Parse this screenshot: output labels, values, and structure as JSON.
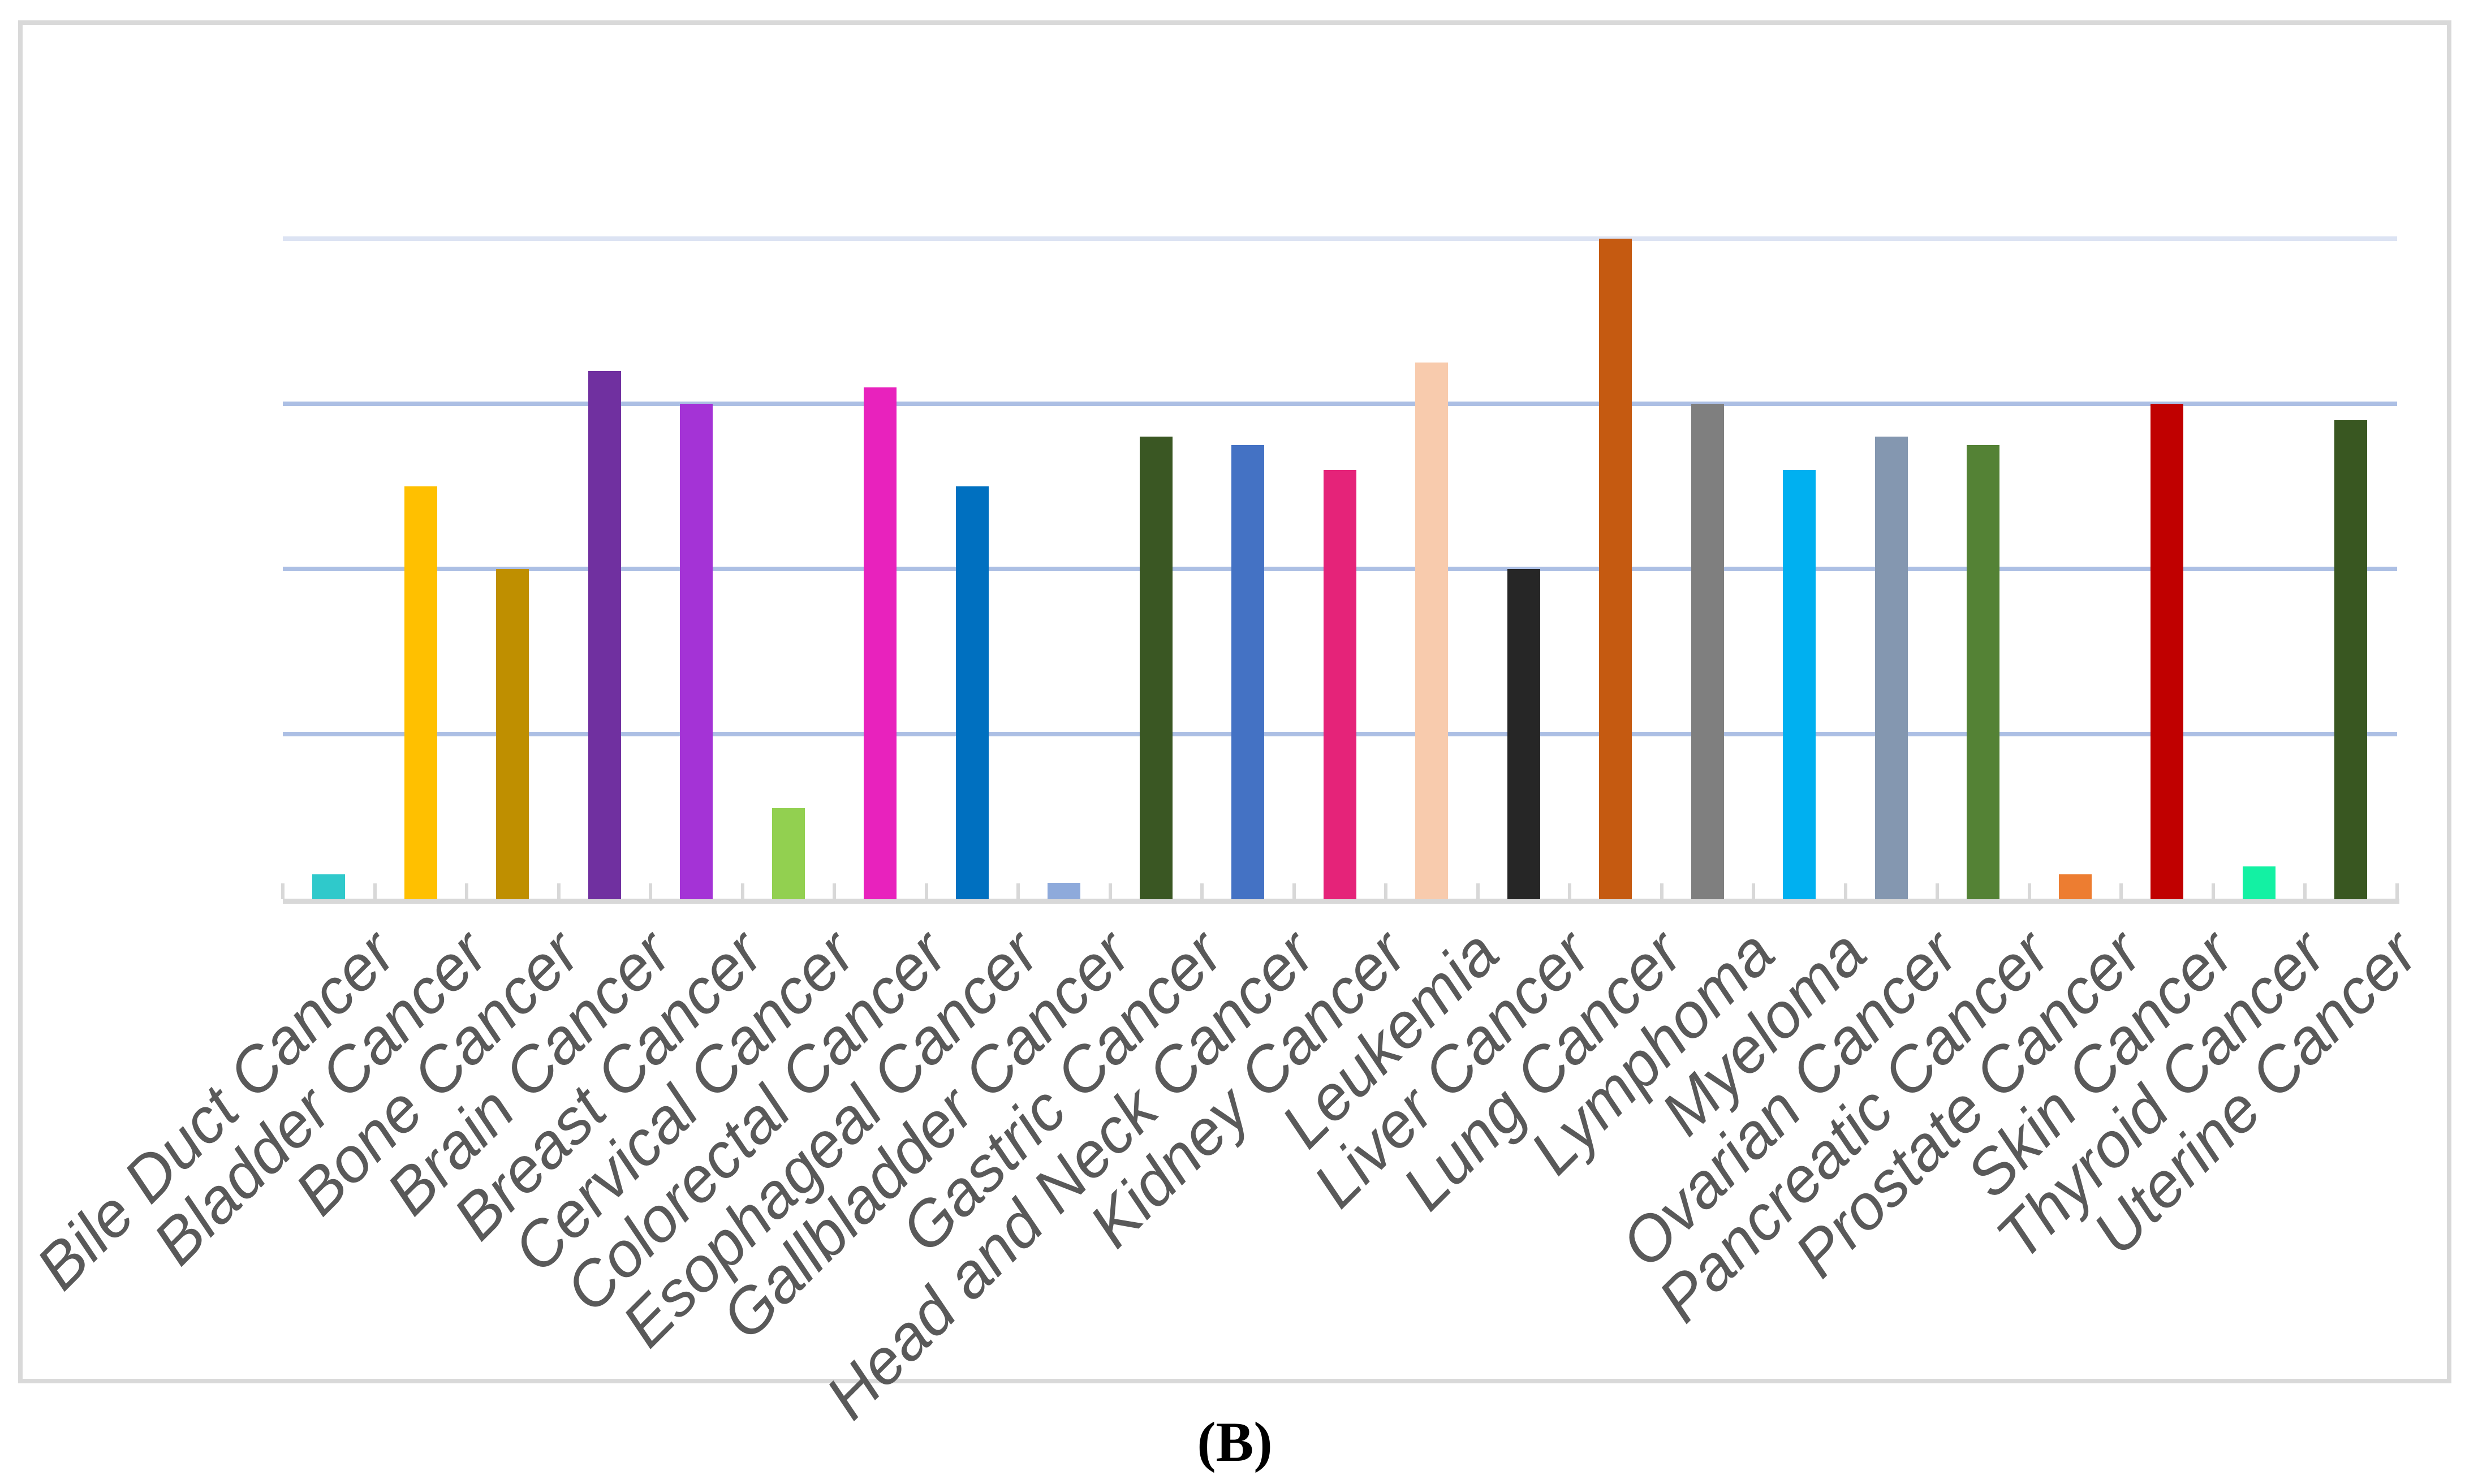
{
  "figure": {
    "caption": "(B)"
  },
  "chart_data": {
    "type": "bar",
    "title": "",
    "xlabel": "",
    "ylabel": "",
    "ylim": [
      0,
      4
    ],
    "gridline_values": [
      1,
      2,
      3,
      4
    ],
    "grid": true,
    "legend": false,
    "y_axis_labels_visible": false,
    "categories": [
      "Bile Duct Cancer",
      "Bladder Cancer",
      "Bone Cancer",
      "Brain Cancer",
      "Breast Cancer",
      "Cervical Cancer",
      "Colorectal Cancer",
      "Esophageal Cancer",
      "Gallbladder Cancer",
      "Gastric Cancer",
      "Head and Neck Cancer",
      "Kidney Cancer",
      "Leukemia",
      "Liver Cancer",
      "Lung Cancer",
      "Lymphoma",
      "Myeloma",
      "Ovarian Cancer",
      "Pancreatic Cancer",
      "Prostate Cancer",
      "Skin Cancer",
      "Thyroid Cancer",
      "Uterine Cancer"
    ],
    "values": [
      0.15,
      2.5,
      2.0,
      3.2,
      3.0,
      0.55,
      3.1,
      2.5,
      0.1,
      2.8,
      2.75,
      2.6,
      3.25,
      2.0,
      4.0,
      3.0,
      2.6,
      2.8,
      2.75,
      0.15,
      3.0,
      0.2,
      2.9
    ],
    "bar_colors": [
      "#2FC9CB",
      "#FFC000",
      "#BF8F00",
      "#7030A0",
      "#A433D6",
      "#92D050",
      "#E822BD",
      "#0070C0",
      "#8EAADB",
      "#3A5723",
      "#4472C4",
      "#E52379",
      "#F8CBAD",
      "#262626",
      "#C55A11",
      "#7F7F7F",
      "#00B0F0",
      "#8497B0",
      "#548235",
      "#ED7D31",
      "#C00000",
      "#13F1A3",
      "#395721"
    ],
    "styles": {
      "gridline_color": "#ACBFE4",
      "top_gridline_color": "#DCE3F3",
      "axis_line_color": "#D8D8D8",
      "tick_color": "#D8D8D8",
      "label_color": "#595959",
      "frame_border_color": "#D9D9D9",
      "background_color": "#FFFFFF"
    }
  }
}
